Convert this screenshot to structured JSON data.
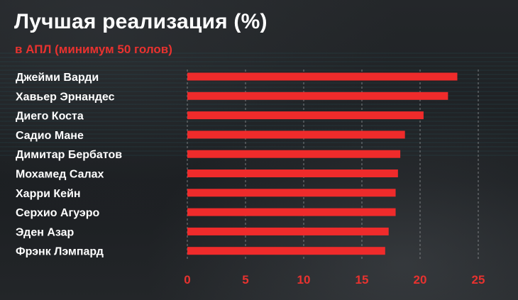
{
  "chart_data": {
    "type": "bar",
    "orientation": "horizontal",
    "title": "Лучшая реализация (%)",
    "subtitle": "в АПЛ (минимум 50 голов)",
    "categories": [
      "Джейми Варди",
      "Хавьер Эрнандес",
      "Диего Коста",
      "Садио Мане",
      "Димитар Бербатов",
      "Мохамед Салах",
      "Харри Кейн",
      "Серхио Агуэро",
      "Эден Азар",
      "Фрэнк Лэмпард"
    ],
    "values": [
      23.2,
      22.4,
      20.3,
      18.7,
      18.3,
      18.1,
      17.9,
      17.9,
      17.3,
      17.0
    ],
    "xlim": [
      0,
      25
    ],
    "xticks": [
      "0",
      "5",
      "10",
      "15",
      "20",
      "25"
    ],
    "grid": true,
    "colors": {
      "bar": "#ef2b2b",
      "ticks": "#e8322f",
      "labels": "#ffffff"
    }
  }
}
